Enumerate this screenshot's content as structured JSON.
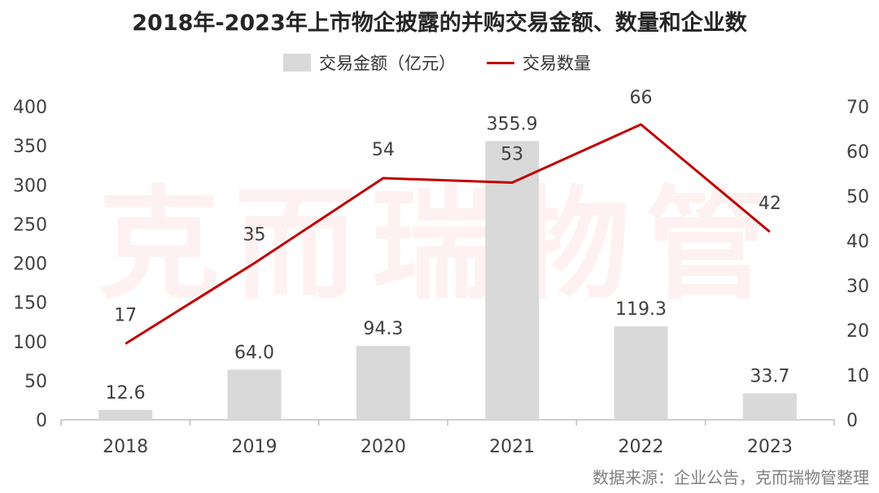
{
  "chart_data": {
    "type": "bar",
    "title": "2018年-2023年上市物企披露的并购交易金额、数量和企业数",
    "categories": [
      "2018",
      "2019",
      "2020",
      "2021",
      "2022",
      "2023"
    ],
    "series": [
      {
        "name": "交易金额（亿元）",
        "type": "bar",
        "axis": "left",
        "color": "#d9d9d9",
        "values": [
          12.6,
          64.0,
          94.3,
          355.9,
          119.3,
          33.7
        ],
        "labels": [
          "12.6",
          "64.0",
          "94.3",
          "355.9",
          "119.3",
          "33.7"
        ]
      },
      {
        "name": "交易数量",
        "type": "line",
        "axis": "right",
        "color": "#c00000",
        "values": [
          17,
          35,
          54,
          53,
          66,
          42
        ],
        "labels": [
          "17",
          "35",
          "54",
          "53",
          "66",
          "42"
        ]
      }
    ],
    "y_left": {
      "ylim": [
        0,
        400
      ],
      "ticks": [
        "0",
        "50",
        "100",
        "150",
        "200",
        "250",
        "300",
        "350",
        "400"
      ]
    },
    "y_right": {
      "ylim": [
        0,
        70
      ],
      "ticks": [
        "0",
        "10",
        "20",
        "30",
        "40",
        "50",
        "60",
        "70"
      ]
    },
    "legend": "top-center",
    "grid": false
  },
  "watermark": "克而瑞物管",
  "source": "数据来源：企业公告，克而瑞物管整理"
}
